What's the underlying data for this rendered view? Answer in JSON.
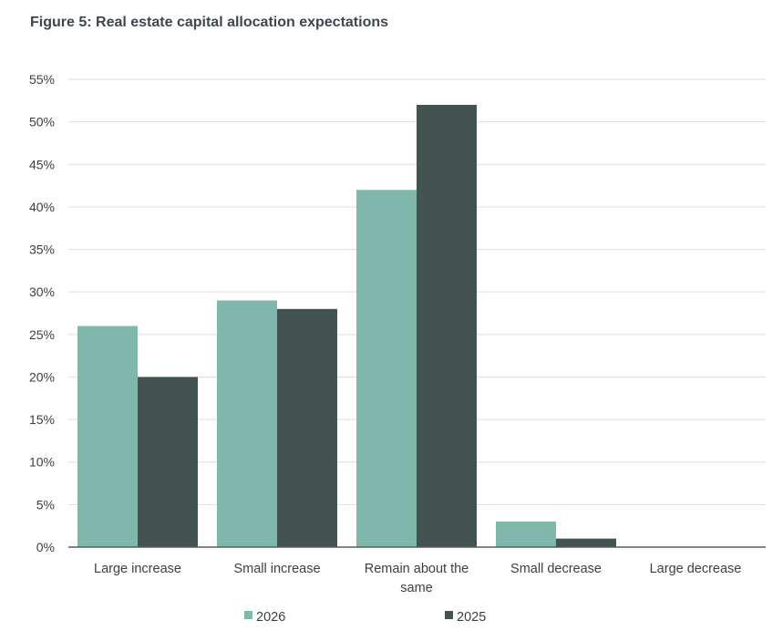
{
  "figure_title": "Figure 5: Real estate capital allocation expectations",
  "colors": {
    "series_2026": "#7fb8aa",
    "series_2025": "#435351",
    "grid": "#dedede",
    "axis": "#5a5a5a"
  },
  "chart_data": {
    "type": "bar",
    "title": "Figure 5: Real estate capital allocation expectations",
    "xlabel": "",
    "ylabel": "",
    "ylim": [
      0,
      55
    ],
    "yticks": [
      0,
      5,
      10,
      15,
      20,
      25,
      30,
      35,
      40,
      45,
      50,
      55
    ],
    "ytick_labels": [
      "0%",
      "5%",
      "10%",
      "15%",
      "20%",
      "25%",
      "30%",
      "35%",
      "40%",
      "45%",
      "50%",
      "55%"
    ],
    "grid": true,
    "legend_position": "bottom-center",
    "categories": [
      [
        "Large increase"
      ],
      [
        "Small increase"
      ],
      [
        "Remain about the",
        "same"
      ],
      [
        "Small decrease"
      ],
      [
        "Large decrease"
      ]
    ],
    "series": [
      {
        "name": "2026",
        "values": [
          26,
          29,
          42,
          3,
          0
        ]
      },
      {
        "name": "2025",
        "values": [
          20,
          28,
          52,
          1,
          0
        ]
      }
    ]
  }
}
